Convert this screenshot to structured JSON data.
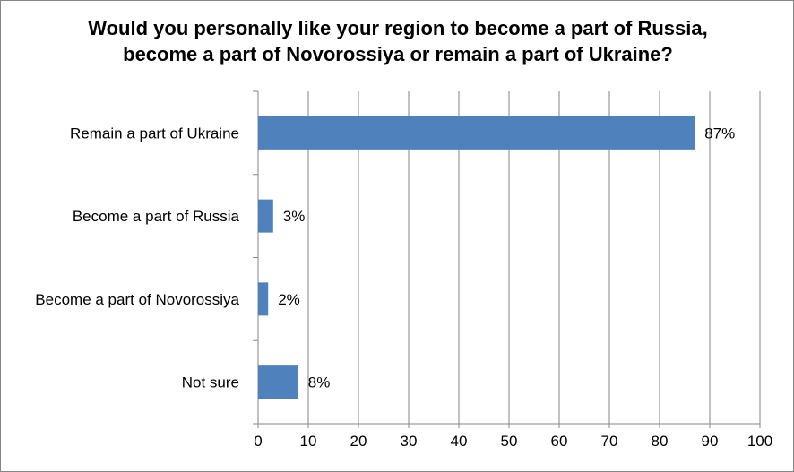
{
  "chart_data": {
    "type": "bar",
    "orientation": "horizontal",
    "title_lines": [
      "Would you personally like your region to become a part of Russia,",
      "become a part of Novorossiya or remain a part of Ukraine?"
    ],
    "categories": [
      "Remain a part of Ukraine",
      "Become a part of Russia",
      "Become a part of Novorossiya",
      "Not sure"
    ],
    "values": [
      87,
      3,
      2,
      8
    ],
    "data_labels": [
      "87%",
      "3%",
      "2%",
      "8%"
    ],
    "xlim": [
      0,
      100
    ],
    "x_ticks": [
      0,
      10,
      20,
      30,
      40,
      50,
      60,
      70,
      80,
      90,
      100
    ],
    "xlabel": "",
    "ylabel": "",
    "grid": "vertical",
    "legend": "none",
    "colors": {
      "bar": "#4f81bd",
      "grid": "#868686"
    }
  }
}
